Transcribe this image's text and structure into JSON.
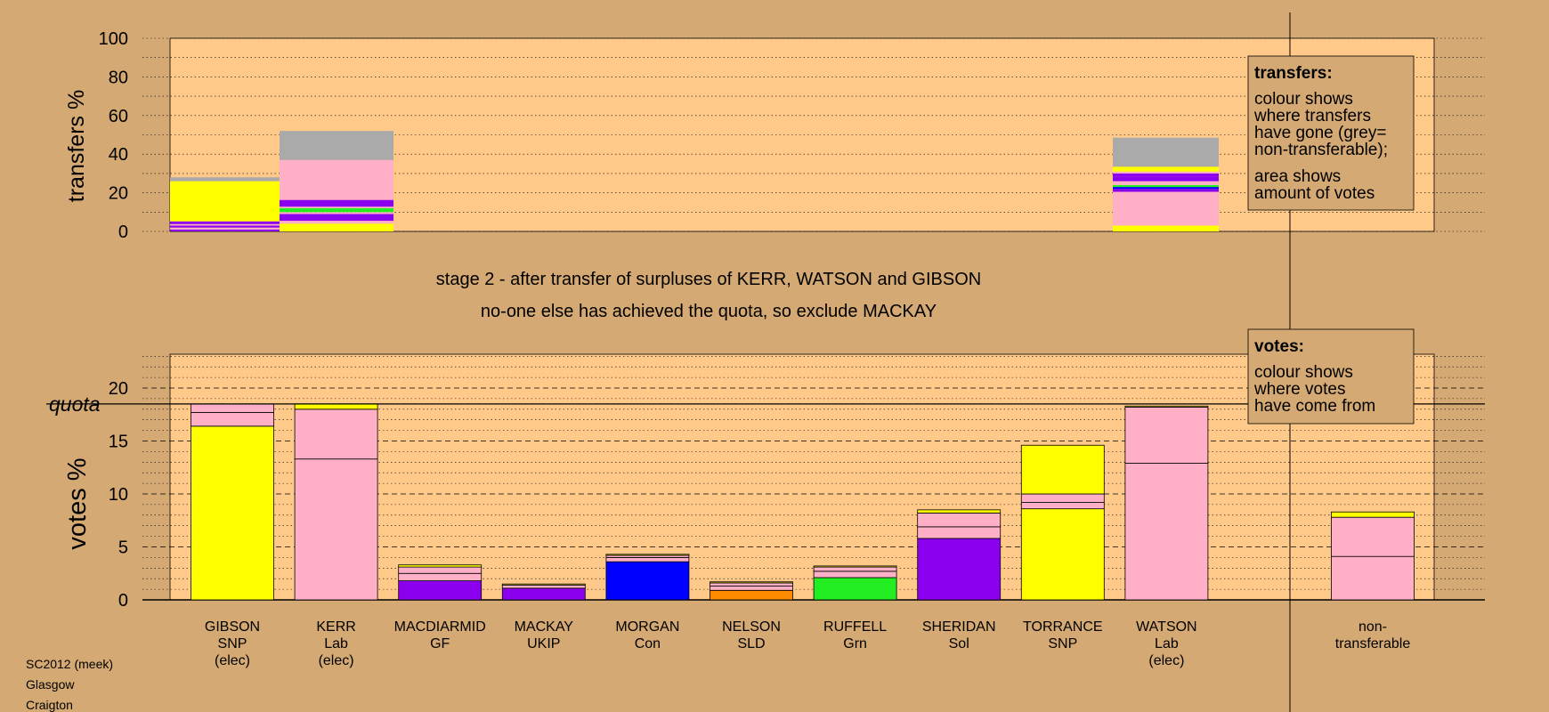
{
  "chart_data": [
    {
      "type": "bar",
      "stacked": true,
      "ylabel": "transfers %",
      "ylim": [
        0,
        100
      ],
      "yticks": [
        0,
        20,
        40,
        60,
        80,
        100
      ],
      "grid": "dotted horizontal",
      "bars": [
        {
          "from": "GIBSON",
          "segments": [
            {
              "party": "Sol",
              "value": 1
            },
            {
              "party": "Lab",
              "value": 1
            },
            {
              "party": "Sol",
              "value": 1
            },
            {
              "party": "Lab",
              "value": 0.8
            },
            {
              "party": "Sol",
              "value": 1.4
            },
            {
              "party": "SNP",
              "value": 20.8
            },
            {
              "party": "non-transferable",
              "value": 2
            }
          ]
        },
        {
          "from": "KERR",
          "segments": [
            {
              "party": "SNP",
              "value": 4
            },
            {
              "party": "Lab",
              "value": 1.5
            },
            {
              "party": "Sol",
              "value": 3.5
            },
            {
              "party": "Lab",
              "value": 1
            },
            {
              "party": "Grn",
              "value": 2
            },
            {
              "party": "Lab",
              "value": 0.8
            },
            {
              "party": "UKIP",
              "value": 3.5
            },
            {
              "party": "Lab",
              "value": 20.7
            },
            {
              "party": "non-transferable",
              "value": 15
            }
          ]
        },
        {
          "from": "WATSON",
          "segments": [
            {
              "party": "SNP",
              "value": 3
            },
            {
              "party": "Lab",
              "value": 17.5
            },
            {
              "party": "Sol",
              "value": 1.5
            },
            {
              "party": "Con",
              "value": 1
            },
            {
              "party": "Grn",
              "value": 1
            },
            {
              "party": "Lab",
              "value": 2
            },
            {
              "party": "Sol",
              "value": 2.5
            },
            {
              "party": "UKIP",
              "value": 1.5
            },
            {
              "party": "Lab",
              "value": 1
            },
            {
              "party": "SNP",
              "value": 2.5
            },
            {
              "party": "non-transferable",
              "value": 15
            }
          ]
        }
      ]
    },
    {
      "type": "bar",
      "stacked": true,
      "ylabel": "votes %",
      "ylim": [
        0,
        20
      ],
      "yticks": [
        0,
        5,
        10,
        15,
        20
      ],
      "quota": 18.5,
      "grid": "dashed at 5, dotted minor",
      "bars": [
        {
          "candidate": "GIBSON",
          "party": "SNP",
          "status": "(elec)",
          "segments": [
            {
              "party": "SNP",
              "value": 16.4
            },
            {
              "party": "Lab",
              "value": 1.3
            },
            {
              "party": "Lab",
              "value": 0.8
            }
          ]
        },
        {
          "candidate": "KERR",
          "party": "Lab",
          "status": "(elec)",
          "segments": [
            {
              "party": "Lab",
              "value": 13.3
            },
            {
              "party": "Lab",
              "value": 4.7
            },
            {
              "party": "SNP",
              "value": 0.5
            }
          ]
        },
        {
          "candidate": "MACDIARMID",
          "party": "GF",
          "status": "",
          "segments": [
            {
              "party": "UKIP",
              "value": 1.8
            },
            {
              "party": "Lab",
              "value": 0.7
            },
            {
              "party": "Lab",
              "value": 0.6
            },
            {
              "party": "SNP",
              "value": 0.2
            }
          ]
        },
        {
          "candidate": "MACKAY",
          "party": "UKIP",
          "status": "",
          "segments": [
            {
              "party": "UKIP",
              "value": 1.1
            },
            {
              "party": "Lab",
              "value": 0.3
            },
            {
              "party": "SNP",
              "value": 0.1
            }
          ]
        },
        {
          "candidate": "MORGAN",
          "party": "Con",
          "status": "",
          "segments": [
            {
              "party": "Con",
              "value": 3.6
            },
            {
              "party": "Lab",
              "value": 0.4
            },
            {
              "party": "Lab",
              "value": 0.2
            },
            {
              "party": "SNP",
              "value": 0.1
            }
          ]
        },
        {
          "candidate": "NELSON",
          "party": "SLD",
          "status": "",
          "segments": [
            {
              "party": "SLD",
              "value": 0.9
            },
            {
              "party": "Lab",
              "value": 0.4
            },
            {
              "party": "Lab",
              "value": 0.3
            },
            {
              "party": "SNP",
              "value": 0.1
            }
          ]
        },
        {
          "candidate": "RUFFELL",
          "party": "Grn",
          "status": "",
          "segments": [
            {
              "party": "Grn",
              "value": 2.1
            },
            {
              "party": "Lab",
              "value": 0.6
            },
            {
              "party": "Lab",
              "value": 0.4
            },
            {
              "party": "SNP",
              "value": 0.1
            }
          ]
        },
        {
          "candidate": "SHERIDAN",
          "party": "Sol",
          "status": "",
          "segments": [
            {
              "party": "Sol",
              "value": 5.8
            },
            {
              "party": "Lab",
              "value": 1.1
            },
            {
              "party": "Lab",
              "value": 1.3
            },
            {
              "party": "SNP",
              "value": 0.3
            }
          ]
        },
        {
          "candidate": "TORRANCE",
          "party": "SNP",
          "status": "",
          "segments": [
            {
              "party": "SNP",
              "value": 8.6
            },
            {
              "party": "Lab",
              "value": 0.6
            },
            {
              "party": "Lab",
              "value": 0.8
            },
            {
              "party": "SNP",
              "value": 4.6
            }
          ]
        },
        {
          "candidate": "WATSON",
          "party": "Lab",
          "status": "(elec)",
          "segments": [
            {
              "party": "Lab",
              "value": 12.9
            },
            {
              "party": "Lab",
              "value": 5.3
            },
            {
              "party": "SNP",
              "value": 0.1
            }
          ]
        },
        {
          "candidate": "non-",
          "party": "transferable",
          "status": "",
          "separated": true,
          "segments": [
            {
              "party": "Lab",
              "value": 4.1
            },
            {
              "party": "Lab",
              "value": 3.7
            },
            {
              "party": "SNP",
              "value": 0.5
            }
          ]
        }
      ]
    }
  ],
  "colors": {
    "background": "#d4a973",
    "plot_panel": "#ffc98a",
    "SNP": "#ffff00",
    "Lab": "#ffb0c6",
    "UKIP": "#8b00ee",
    "Sol": "#8b00ee",
    "Con": "#0000ff",
    "SLD": "#ff8c00",
    "Grn": "#22ee22",
    "non-transferable": "#aaaaaa"
  },
  "top": {
    "ylabel": "transfers %"
  },
  "middle": {
    "line1": "stage 2 - after transfer of surpluses of KERR, WATSON and GIBSON",
    "line2": "no-one else has achieved the quota, so exclude MACKAY"
  },
  "bottom": {
    "ylabel": "votes %",
    "quota_label": "quota"
  },
  "legend_transfers": {
    "title": "transfers:",
    "lines": [
      "colour shows",
      "where transfers",
      "have gone (grey=",
      "non-transferable);"
    ],
    "lines2": [
      "area shows",
      "amount of votes"
    ]
  },
  "legend_votes": {
    "title": "votes:",
    "lines": [
      "colour shows",
      "where votes",
      "have come from"
    ]
  },
  "footer": [
    "SC2012 (meek)",
    "Glasgow",
    "Craigton"
  ]
}
